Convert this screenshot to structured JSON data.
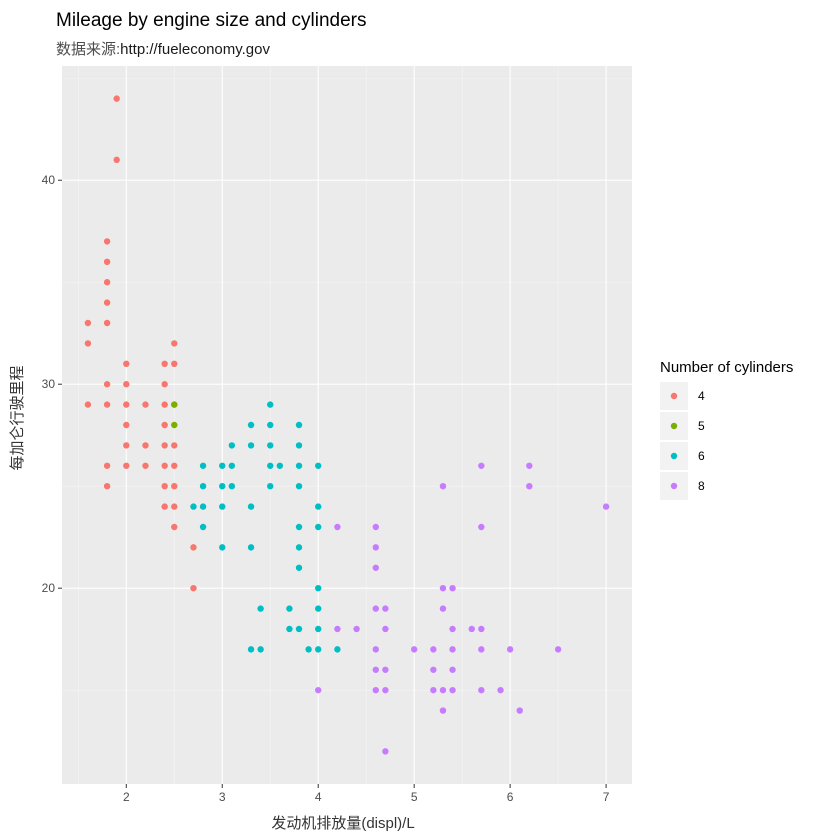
{
  "chart_data": {
    "type": "scatter",
    "title": "Mileage by engine size and cylinders",
    "subtitle_prefix": "数据来源:",
    "subtitle_url": "http://fueleconomy.gov",
    "xlabel_cn": "发动机排放量",
    "xlabel_en": "(displ)/L",
    "ylabel": "每加仑行驶里程",
    "xlim": [
      1.33,
      7.27
    ],
    "ylim": [
      10.4,
      45.6
    ],
    "x_ticks": [
      2,
      3,
      4,
      5,
      6,
      7
    ],
    "y_ticks": [
      20,
      30,
      40
    ],
    "x_tick_labels": [
      "2",
      "3",
      "4",
      "5",
      "6",
      "7"
    ],
    "y_tick_labels": [
      "20",
      "30",
      "40"
    ],
    "grid": true,
    "panel_background": "#ebebeb",
    "legend": {
      "title": "Number of cylinders",
      "placement": "right",
      "entries": [
        {
          "label": "4",
          "color": "#f8766d"
        },
        {
          "label": "5",
          "color": "#7cae00"
        },
        {
          "label": "6",
          "color": "#00bfc4"
        },
        {
          "label": "8",
          "color": "#c77cff"
        }
      ]
    },
    "series": [
      {
        "name": "4",
        "color": "#f8766d",
        "points": [
          [
            1.9,
            44
          ],
          [
            1.9,
            41
          ],
          [
            1.8,
            37
          ],
          [
            1.8,
            36
          ],
          [
            1.8,
            35
          ],
          [
            1.8,
            34
          ],
          [
            1.8,
            33
          ],
          [
            1.6,
            33
          ],
          [
            1.6,
            32
          ],
          [
            2.5,
            32
          ],
          [
            2.0,
            31
          ],
          [
            2.4,
            31
          ],
          [
            2.5,
            31
          ],
          [
            1.8,
            30
          ],
          [
            2.0,
            30
          ],
          [
            2.4,
            30
          ],
          [
            1.6,
            29
          ],
          [
            1.8,
            29
          ],
          [
            2.0,
            29
          ],
          [
            2.2,
            29
          ],
          [
            2.4,
            29
          ],
          [
            2.5,
            29
          ],
          [
            2.0,
            28
          ],
          [
            2.4,
            28
          ],
          [
            2.0,
            27
          ],
          [
            2.2,
            27
          ],
          [
            2.4,
            27
          ],
          [
            2.5,
            27
          ],
          [
            1.8,
            26
          ],
          [
            2.0,
            26
          ],
          [
            2.2,
            26
          ],
          [
            2.4,
            26
          ],
          [
            2.5,
            26
          ],
          [
            1.8,
            25
          ],
          [
            2.4,
            25
          ],
          [
            2.5,
            25
          ],
          [
            2.4,
            24
          ],
          [
            2.5,
            24
          ],
          [
            2.5,
            23
          ],
          [
            2.7,
            22
          ],
          [
            2.7,
            20
          ]
        ]
      },
      {
        "name": "5",
        "color": "#7cae00",
        "points": [
          [
            2.5,
            29
          ],
          [
            2.5,
            28
          ]
        ]
      },
      {
        "name": "6",
        "color": "#00bfc4",
        "points": [
          [
            3.5,
            29
          ],
          [
            3.3,
            28
          ],
          [
            3.5,
            28
          ],
          [
            3.8,
            28
          ],
          [
            3.1,
            27
          ],
          [
            3.3,
            27
          ],
          [
            3.5,
            27
          ],
          [
            3.8,
            27
          ],
          [
            2.8,
            26
          ],
          [
            3.0,
            26
          ],
          [
            3.1,
            26
          ],
          [
            3.5,
            26
          ],
          [
            3.6,
            26
          ],
          [
            3.8,
            26
          ],
          [
            4.0,
            26
          ],
          [
            2.8,
            25
          ],
          [
            3.0,
            25
          ],
          [
            3.1,
            25
          ],
          [
            3.5,
            25
          ],
          [
            3.8,
            25
          ],
          [
            2.7,
            24
          ],
          [
            2.8,
            24
          ],
          [
            3.0,
            24
          ],
          [
            3.3,
            24
          ],
          [
            4.0,
            24
          ],
          [
            2.8,
            23
          ],
          [
            3.8,
            23
          ],
          [
            4.0,
            23
          ],
          [
            3.0,
            22
          ],
          [
            3.3,
            22
          ],
          [
            3.8,
            22
          ],
          [
            3.8,
            21
          ],
          [
            4.0,
            20
          ],
          [
            3.4,
            19
          ],
          [
            3.7,
            19
          ],
          [
            4.0,
            19
          ],
          [
            3.8,
            18
          ],
          [
            4.0,
            18
          ],
          [
            3.7,
            18
          ],
          [
            3.3,
            17
          ],
          [
            3.4,
            17
          ],
          [
            3.9,
            17
          ],
          [
            4.0,
            17
          ],
          [
            4.2,
            17
          ]
        ]
      },
      {
        "name": "8",
        "color": "#c77cff",
        "points": [
          [
            5.7,
            26
          ],
          [
            6.2,
            26
          ],
          [
            5.3,
            25
          ],
          [
            6.2,
            25
          ],
          [
            7.0,
            24
          ],
          [
            4.2,
            23
          ],
          [
            4.6,
            23
          ],
          [
            5.7,
            23
          ],
          [
            4.6,
            22
          ],
          [
            4.6,
            21
          ],
          [
            5.3,
            20
          ],
          [
            5.4,
            20
          ],
          [
            4.6,
            19
          ],
          [
            4.7,
            19
          ],
          [
            5.3,
            19
          ],
          [
            5.4,
            18
          ],
          [
            5.6,
            18
          ],
          [
            5.7,
            18
          ],
          [
            4.2,
            18
          ],
          [
            4.4,
            18
          ],
          [
            4.7,
            18
          ],
          [
            4.6,
            17
          ],
          [
            5.0,
            17
          ],
          [
            5.2,
            17
          ],
          [
            5.4,
            17
          ],
          [
            5.7,
            17
          ],
          [
            6.0,
            17
          ],
          [
            6.5,
            17
          ],
          [
            4.6,
            16
          ],
          [
            4.7,
            16
          ],
          [
            5.2,
            16
          ],
          [
            5.4,
            16
          ],
          [
            4.0,
            15
          ],
          [
            4.6,
            15
          ],
          [
            4.7,
            15
          ],
          [
            5.2,
            15
          ],
          [
            5.3,
            15
          ],
          [
            5.4,
            15
          ],
          [
            5.7,
            15
          ],
          [
            5.9,
            15
          ],
          [
            5.3,
            14
          ],
          [
            6.1,
            14
          ],
          [
            4.7,
            12
          ]
        ]
      }
    ]
  }
}
